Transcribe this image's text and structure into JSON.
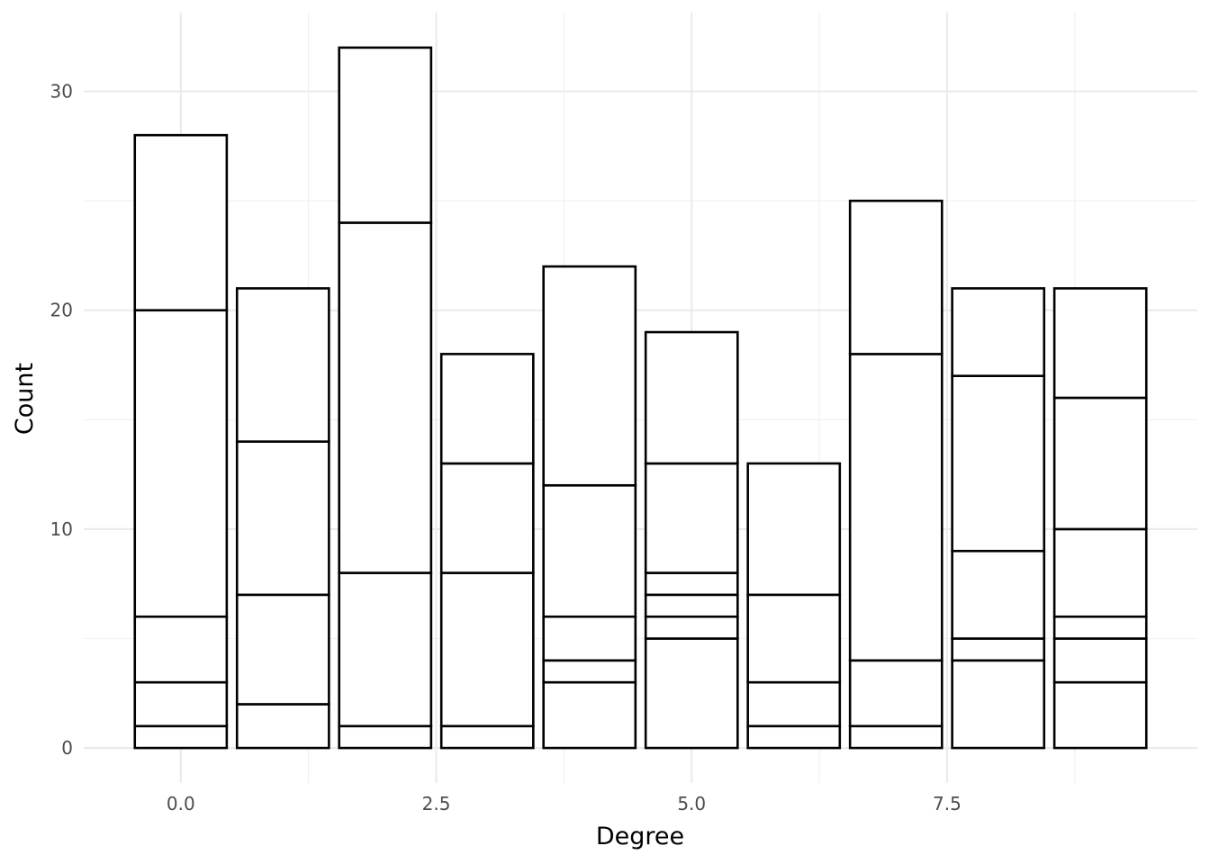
{
  "chart_data": {
    "type": "bar",
    "stacked": true,
    "title": "",
    "xlabel": "Degree",
    "ylabel": "Count",
    "x": [
      0,
      1,
      2,
      3,
      4,
      5,
      6,
      7,
      8,
      9
    ],
    "bar_width": 0.9,
    "xlim": [
      -0.95,
      9.95
    ],
    "ylim": [
      -1.6,
      33.6
    ],
    "x_ticks": [
      0,
      2.5,
      5,
      7.5
    ],
    "x_tick_labels": [
      "0.0",
      "2.5",
      "5.0",
      "7.5"
    ],
    "y_ticks": [
      0,
      10,
      20,
      30
    ],
    "y_tick_labels": [
      "0",
      "10",
      "20",
      "30"
    ],
    "grid": true,
    "legend": "none",
    "bar_fill": "#ffffff",
    "bar_outline": "#000000",
    "segment_boundaries": [
      [
        1,
        3,
        6,
        20,
        28
      ],
      [
        2,
        7,
        14,
        21
      ],
      [
        1,
        8,
        24,
        32
      ],
      [
        1,
        8,
        13,
        18
      ],
      [
        3,
        4,
        6,
        12,
        22
      ],
      [
        5,
        6,
        7,
        8,
        13,
        19
      ],
      [
        1,
        3,
        7,
        13
      ],
      [
        1,
        4,
        18,
        25
      ],
      [
        4,
        5,
        9,
        17,
        21
      ],
      [
        3,
        5,
        6,
        10,
        16,
        21
      ]
    ],
    "totals": [
      28,
      21,
      32,
      18,
      22,
      19,
      13,
      25,
      21,
      21
    ]
  }
}
